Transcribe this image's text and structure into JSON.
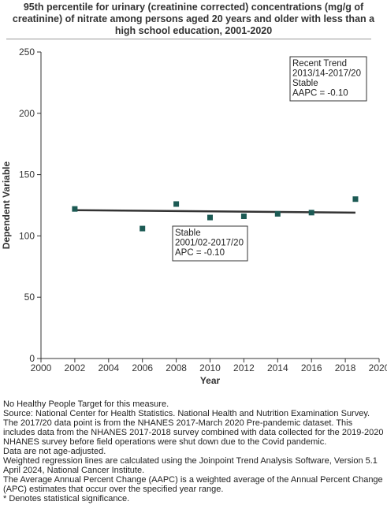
{
  "chart_data": {
    "type": "scatter",
    "title": "95th percentile for urinary (creatinine corrected) concentrations (mg/g of creatinine) of nitrate among  persons aged 20 years and older with less than a high school education, 2001-2020",
    "xlabel": "Year",
    "ylabel": "Dependent Variable",
    "xlim": [
      2000,
      2020
    ],
    "ylim": [
      0,
      250
    ],
    "xticks": [
      2000,
      2002,
      2004,
      2006,
      2008,
      2010,
      2012,
      2014,
      2016,
      2018,
      2020
    ],
    "yticks": [
      0,
      50,
      100,
      150,
      200,
      250
    ],
    "grid": false,
    "points": [
      {
        "x": 2002,
        "y": 122
      },
      {
        "x": 2006,
        "y": 106
      },
      {
        "x": 2008,
        "y": 126
      },
      {
        "x": 2010,
        "y": 115
      },
      {
        "x": 2012,
        "y": 116
      },
      {
        "x": 2014,
        "y": 118
      },
      {
        "x": 2016,
        "y": 119
      },
      {
        "x": 2018.6,
        "y": 130
      }
    ],
    "trend_line": [
      {
        "x": 2002,
        "y": 121
      },
      {
        "x": 2018.6,
        "y": 119
      }
    ],
    "point_color": "#1c5a54",
    "line_color": "#333333",
    "annotations": [
      {
        "id": "recent",
        "lines": [
          "Recent Trend",
          "2013/14-2017/20",
          "Stable",
          "AAPC = -0.10"
        ],
        "placement": "top-right"
      },
      {
        "id": "overall",
        "lines": [
          "Stable",
          "2001/02-2017/20",
          "APC = -0.10"
        ],
        "placement": "center"
      }
    ]
  },
  "notes": [
    "No Healthy People Target for this measure.",
    "Source: National Center for Health Statistics. National Health and Nutrition Examination Survey. The 2017/20 data point is from the NHANES 2017-March 2020 Pre-pandemic dataset. This includes data from the NHANES 2017-2018 survey combined with data collected for the 2019-2020 NHANES survey before field operations were shut down due to the Covid pandemic.",
    "Data are not age-adjusted.",
    "Weighted regression lines are calculated using the Joinpoint Trend Analysis Software, Version 5.1 April 2024, National Cancer Institute.",
    "The Average Annual Percent Change (AAPC) is a weighted average of the Annual Percent Change (APC) estimates that occur over the specified year range.",
    "* Denotes statistical significance."
  ]
}
